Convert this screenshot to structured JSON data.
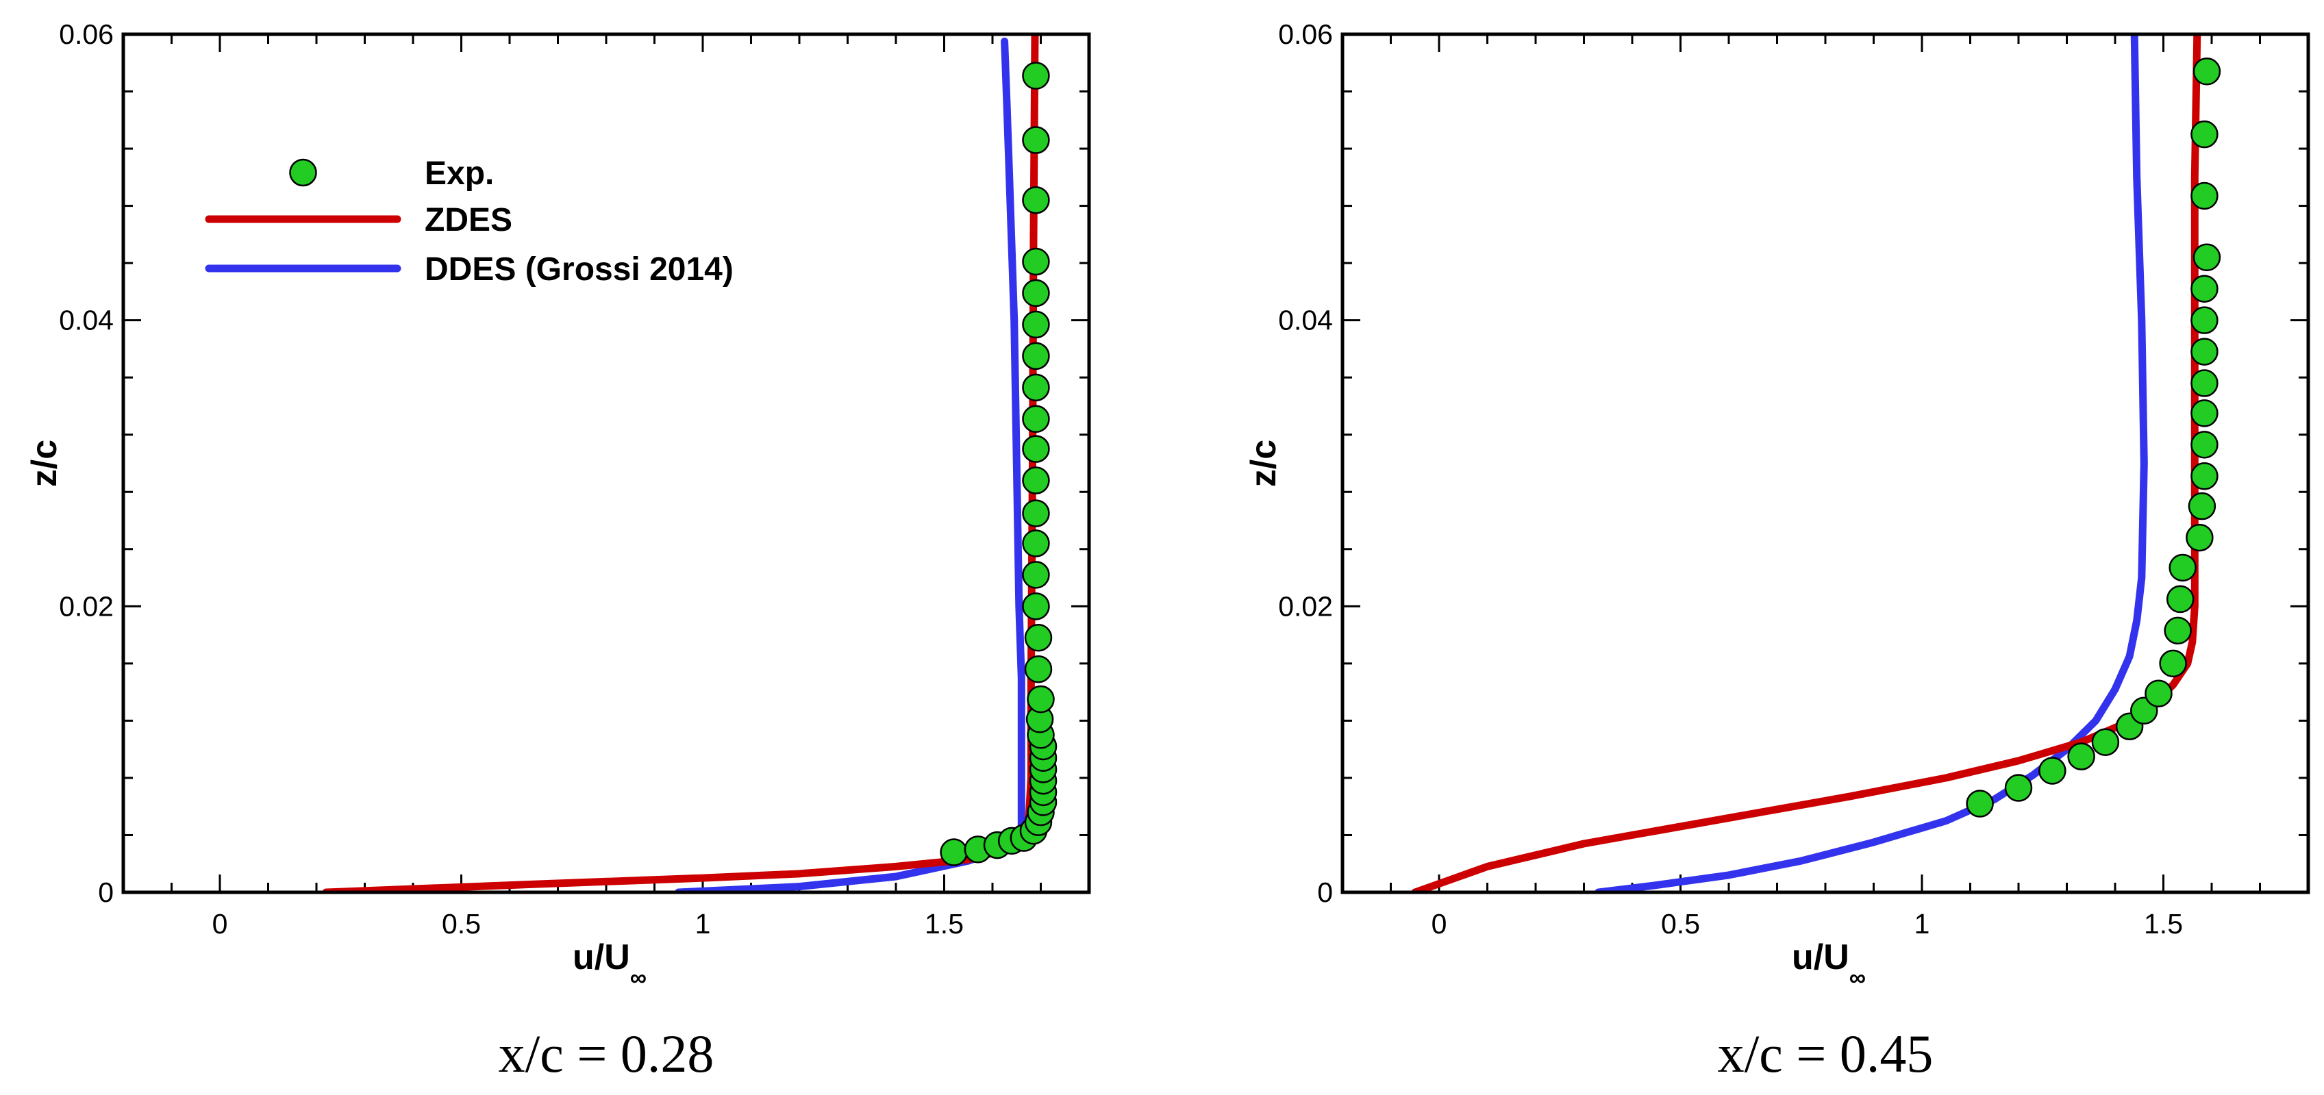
{
  "chart_data": [
    {
      "type": "line",
      "xlabel": "u/U",
      "xlabel_sub": "∞",
      "ylabel": "z/c",
      "caption": "x/c = 0.28",
      "xlim": [
        -0.2,
        1.8
      ],
      "ylim": [
        0,
        0.06
      ],
      "x_ticks": [
        "0",
        "0.5",
        "1",
        "1.5"
      ],
      "y_ticks": [
        "0",
        "0.02",
        "0.04",
        "0.06"
      ],
      "legend": {
        "placement": "top-left",
        "entries": [
          {
            "label": "Exp.",
            "kind": "marker",
            "color": "#22cc22"
          },
          {
            "label": "ZDES",
            "kind": "line",
            "color": "#cc0000"
          },
          {
            "label": "DDES (Grossi 2014)",
            "kind": "line",
            "color": "#3333ee"
          }
        ]
      },
      "series": [
        {
          "name": "Exp.",
          "color": "#22cc22",
          "style": "marker",
          "points": [
            [
              1.52,
              0.0028
            ],
            [
              1.57,
              0.003
            ],
            [
              1.61,
              0.0033
            ],
            [
              1.64,
              0.0036
            ],
            [
              1.665,
              0.0038
            ],
            [
              1.685,
              0.0043
            ],
            [
              1.695,
              0.0049
            ],
            [
              1.7,
              0.0056
            ],
            [
              1.705,
              0.0063
            ],
            [
              1.705,
              0.007
            ],
            [
              1.705,
              0.0078
            ],
            [
              1.705,
              0.0086
            ],
            [
              1.705,
              0.0094
            ],
            [
              1.705,
              0.0102
            ],
            [
              1.7,
              0.011
            ],
            [
              1.698,
              0.0121
            ],
            [
              1.7,
              0.0135
            ],
            [
              1.695,
              0.0156
            ],
            [
              1.695,
              0.0178
            ],
            [
              1.69,
              0.02
            ],
            [
              1.69,
              0.0222
            ],
            [
              1.69,
              0.0244
            ],
            [
              1.69,
              0.0265
            ],
            [
              1.69,
              0.0288
            ],
            [
              1.69,
              0.031
            ],
            [
              1.69,
              0.0331
            ],
            [
              1.69,
              0.0353
            ],
            [
              1.69,
              0.0375
            ],
            [
              1.69,
              0.0397
            ],
            [
              1.69,
              0.0419
            ],
            [
              1.69,
              0.0441
            ],
            [
              1.69,
              0.0484
            ],
            [
              1.69,
              0.0526
            ],
            [
              1.69,
              0.0571
            ]
          ]
        },
        {
          "name": "ZDES",
          "color": "#cc0000",
          "style": "line",
          "points": [
            [
              0.22,
              0
            ],
            [
              0.6,
              0.0005
            ],
            [
              1.0,
              0.001
            ],
            [
              1.2,
              0.0013
            ],
            [
              1.4,
              0.0018
            ],
            [
              1.55,
              0.0023
            ],
            [
              1.63,
              0.003
            ],
            [
              1.665,
              0.0038
            ],
            [
              1.675,
              0.005
            ],
            [
              1.68,
              0.008
            ],
            [
              1.68,
              0.015
            ],
            [
              1.683,
              0.03
            ],
            [
              1.685,
              0.045
            ],
            [
              1.688,
              0.06
            ]
          ]
        },
        {
          "name": "DDES (Grossi 2014)",
          "color": "#3333ee",
          "style": "line",
          "points": [
            [
              0.95,
              0
            ],
            [
              1.2,
              0.0004
            ],
            [
              1.4,
              0.0011
            ],
            [
              1.55,
              0.0022
            ],
            [
              1.62,
              0.003
            ],
            [
              1.655,
              0.0037
            ],
            [
              1.66,
              0.0045
            ],
            [
              1.66,
              0.008
            ],
            [
              1.66,
              0.015
            ],
            [
              1.655,
              0.02
            ],
            [
              1.65,
              0.03
            ],
            [
              1.645,
              0.04
            ],
            [
              1.635,
              0.05
            ],
            [
              1.63,
              0.055
            ],
            [
              1.625,
              0.0595
            ]
          ]
        }
      ]
    },
    {
      "type": "line",
      "xlabel": "u/U",
      "xlabel_sub": "∞",
      "ylabel": "z/c",
      "caption": "x/c = 0.45",
      "xlim": [
        -0.2,
        1.8
      ],
      "ylim": [
        0,
        0.06
      ],
      "x_ticks": [
        "0",
        "0.5",
        "1",
        "1.5"
      ],
      "y_ticks": [
        "0",
        "0.02",
        "0.04",
        "0.06"
      ],
      "series": [
        {
          "name": "Exp.",
          "color": "#22cc22",
          "style": "marker",
          "points": [
            [
              1.12,
              0.0062
            ],
            [
              1.2,
              0.0073
            ],
            [
              1.27,
              0.0085
            ],
            [
              1.33,
              0.0095
            ],
            [
              1.38,
              0.0105
            ],
            [
              1.43,
              0.0116
            ],
            [
              1.46,
              0.0127
            ],
            [
              1.49,
              0.0139
            ],
            [
              1.52,
              0.016
            ],
            [
              1.53,
              0.0183
            ],
            [
              1.535,
              0.0205
            ],
            [
              1.54,
              0.0227
            ],
            [
              1.575,
              0.0248
            ],
            [
              1.58,
              0.027
            ],
            [
              1.585,
              0.0291
            ],
            [
              1.585,
              0.0313
            ],
            [
              1.585,
              0.0335
            ],
            [
              1.585,
              0.0356
            ],
            [
              1.585,
              0.0378
            ],
            [
              1.585,
              0.04
            ],
            [
              1.585,
              0.0422
            ],
            [
              1.59,
              0.0444
            ],
            [
              1.585,
              0.0487
            ],
            [
              1.585,
              0.053
            ],
            [
              1.59,
              0.0574
            ]
          ]
        },
        {
          "name": "ZDES",
          "color": "#cc0000",
          "style": "line",
          "points": [
            [
              -0.05,
              0
            ],
            [
              0.0,
              0.0006
            ],
            [
              0.1,
              0.0018
            ],
            [
              0.3,
              0.0034
            ],
            [
              0.6,
              0.0052
            ],
            [
              0.85,
              0.0067
            ],
            [
              1.05,
              0.008
            ],
            [
              1.2,
              0.0092
            ],
            [
              1.33,
              0.0105
            ],
            [
              1.42,
              0.0118
            ],
            [
              1.48,
              0.0132
            ],
            [
              1.52,
              0.0145
            ],
            [
              1.55,
              0.016
            ],
            [
              1.56,
              0.0175
            ],
            [
              1.565,
              0.02
            ],
            [
              1.565,
              0.03
            ],
            [
              1.565,
              0.04
            ],
            [
              1.565,
              0.05
            ],
            [
              1.57,
              0.06
            ]
          ]
        },
        {
          "name": "DDES (Grossi 2014)",
          "color": "#3333ee",
          "style": "line",
          "points": [
            [
              0.33,
              0
            ],
            [
              0.45,
              0.0005
            ],
            [
              0.6,
              0.0012
            ],
            [
              0.75,
              0.0022
            ],
            [
              0.9,
              0.0035
            ],
            [
              1.05,
              0.005
            ],
            [
              1.15,
              0.0065
            ],
            [
              1.23,
              0.0082
            ],
            [
              1.3,
              0.01
            ],
            [
              1.36,
              0.012
            ],
            [
              1.4,
              0.0142
            ],
            [
              1.43,
              0.0165
            ],
            [
              1.445,
              0.019
            ],
            [
              1.455,
              0.022
            ],
            [
              1.46,
              0.03
            ],
            [
              1.455,
              0.04
            ],
            [
              1.445,
              0.05
            ],
            [
              1.44,
              0.06
            ]
          ]
        }
      ]
    }
  ]
}
